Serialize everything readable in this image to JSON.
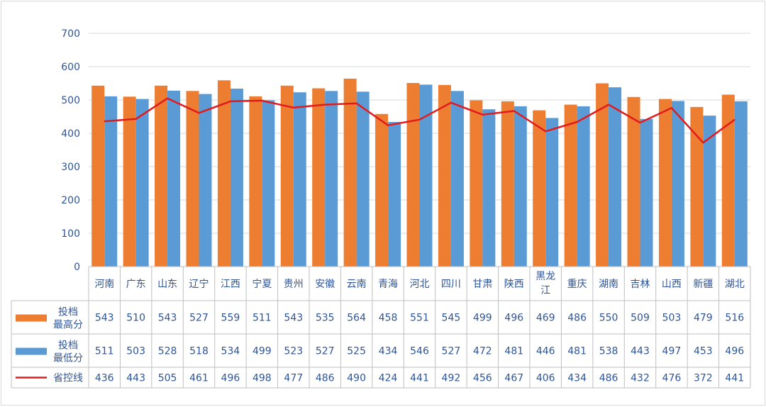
{
  "chart_data": {
    "type": "bar",
    "categories": [
      "河南",
      "广东",
      "山东",
      "辽宁",
      "江西",
      "宁夏",
      "贵州",
      "安徽",
      "云南",
      "青海",
      "河北",
      "四川",
      "甘肃",
      "陕西",
      "黑龙江",
      "重庆",
      "湖南",
      "吉林",
      "山西",
      "新疆",
      "湖北"
    ],
    "series": [
      {
        "name": "投档最高分",
        "type": "bar",
        "color": "#ed7d31",
        "values": [
          543,
          510,
          543,
          527,
          559,
          511,
          543,
          535,
          564,
          458,
          551,
          545,
          499,
          496,
          469,
          486,
          550,
          509,
          503,
          479,
          516
        ]
      },
      {
        "name": "投档最低分",
        "type": "bar",
        "color": "#5b9bd5",
        "values": [
          511,
          503,
          528,
          518,
          534,
          499,
          523,
          527,
          525,
          434,
          546,
          527,
          472,
          481,
          446,
          481,
          538,
          443,
          497,
          453,
          496
        ]
      },
      {
        "name": "省控线",
        "type": "line",
        "color": "#e31a1c",
        "values": [
          436,
          443,
          505,
          461,
          496,
          498,
          477,
          486,
          490,
          424,
          441,
          492,
          456,
          467,
          406,
          434,
          486,
          432,
          476,
          372,
          441
        ]
      }
    ],
    "ylim": [
      0,
      700
    ],
    "yticks": [
      0,
      100,
      200,
      300,
      400,
      500,
      600,
      700
    ],
    "grid": true,
    "legend": "data-table"
  }
}
